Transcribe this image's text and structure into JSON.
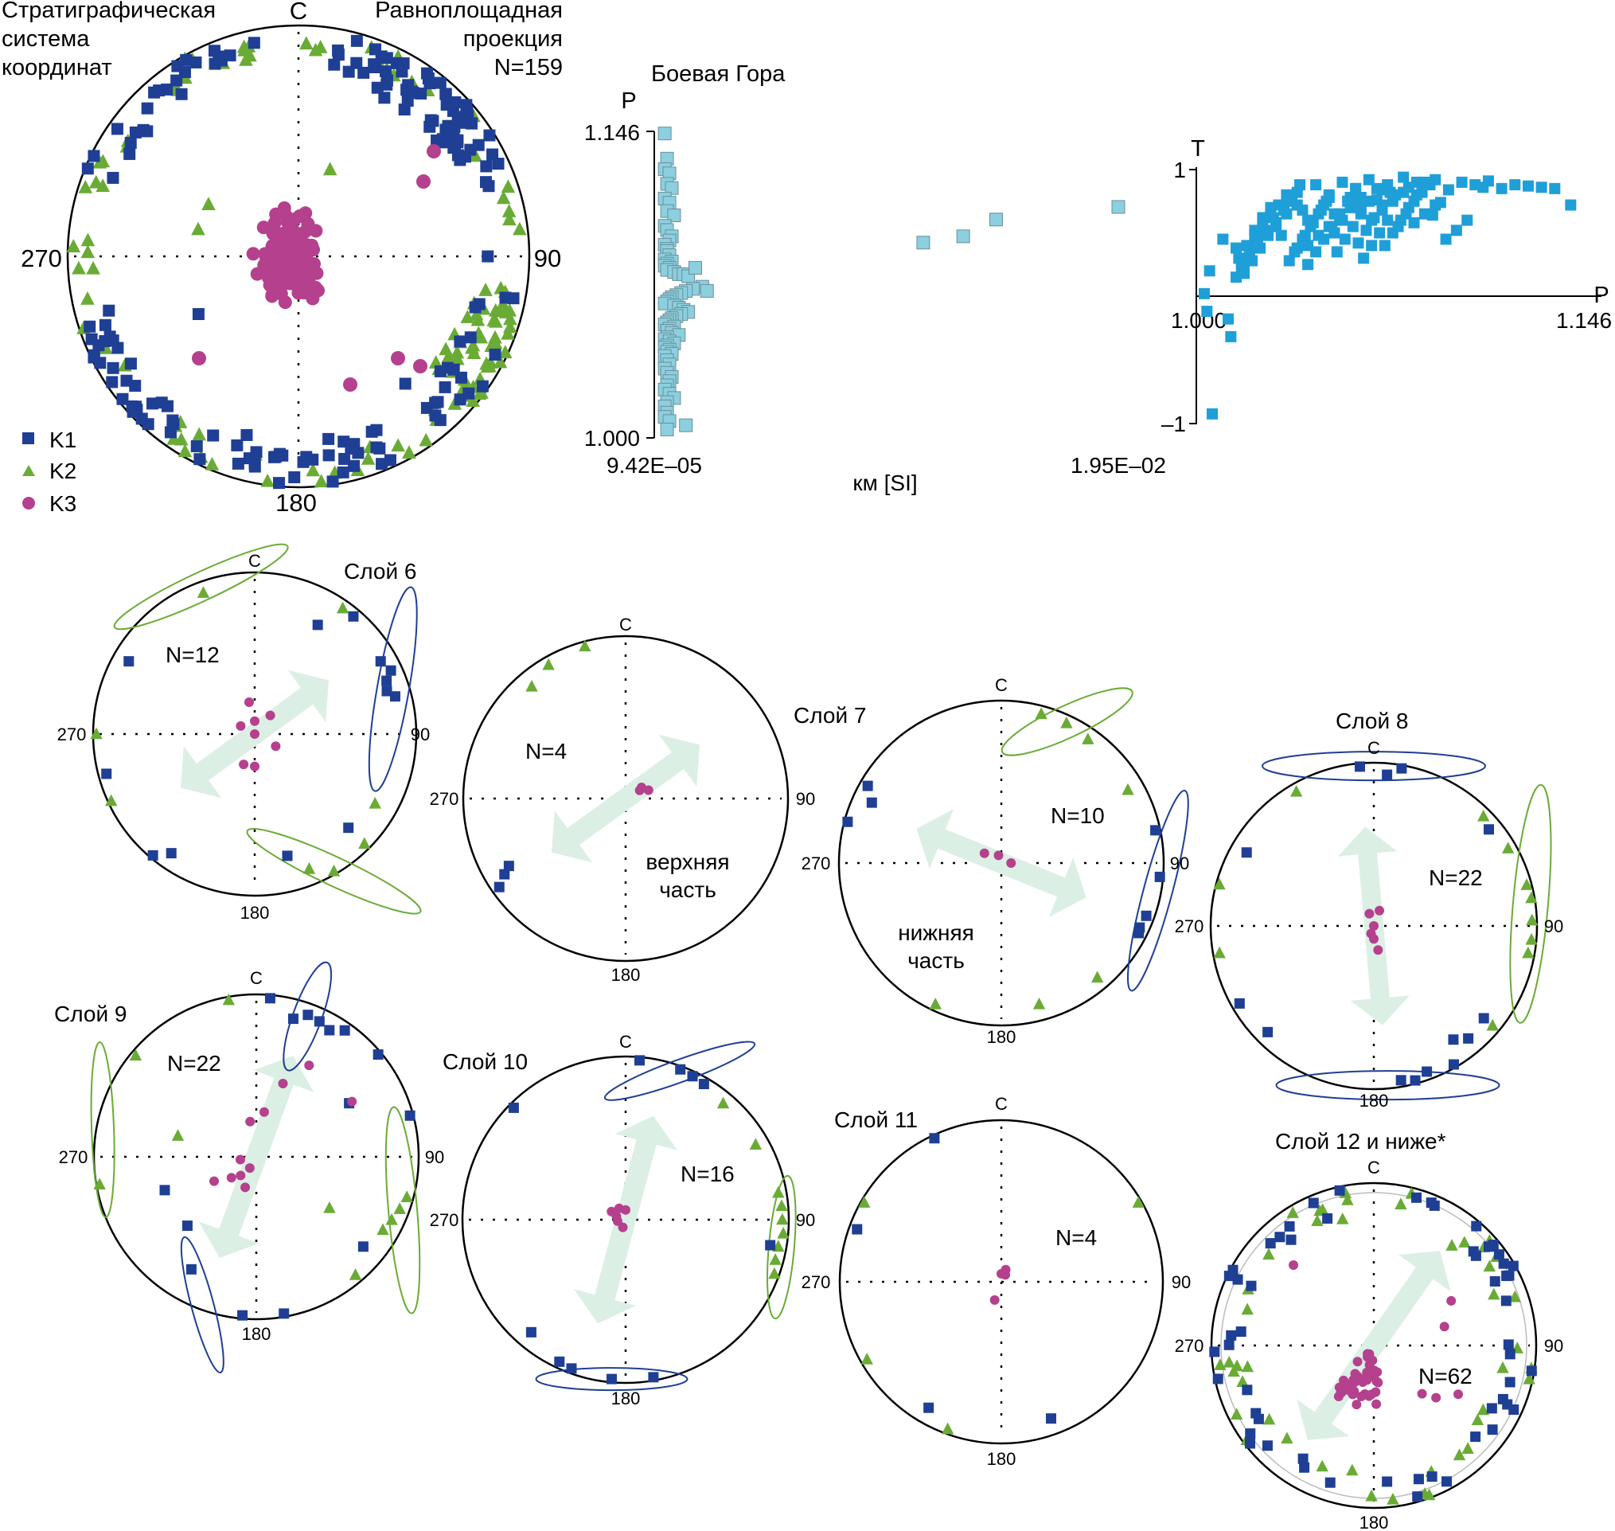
{
  "main_stereonet": {
    "title_left": [
      "Стратиграфическая",
      "система",
      "координат"
    ],
    "title_right": [
      "Равноплощадная",
      "проекция",
      "N=159"
    ],
    "north": "С",
    "east": "90",
    "south": "180",
    "west": "270"
  },
  "legend": [
    {
      "key": "K1",
      "label": "K1",
      "marker": "square",
      "color": "#1f3f94"
    },
    {
      "key": "K2",
      "label": "K2",
      "marker": "triangle",
      "color": "#6aab35"
    },
    {
      "key": "K3",
      "label": "K3",
      "marker": "circle",
      "color": "#b5408e"
    }
  ],
  "colors": {
    "K1": "#1f3f94",
    "K2": "#6aab35",
    "K3": "#b5408e",
    "pkm": "#8ccfdf",
    "tp": "#1f9fd8",
    "arrow": "#dcefe4"
  },
  "subplots": [
    {
      "title": "Слой 6",
      "n_label": "N=12",
      "north": "С",
      "east": "90",
      "south": "180",
      "west": "270",
      "extra": []
    },
    {
      "title": "",
      "n_label": "N=4",
      "north": "С",
      "east": "90",
      "south": "180",
      "west": "270",
      "extra": [
        "верхняя",
        "часть"
      ]
    },
    {
      "title": "Слой 7",
      "n_label": "N=10",
      "north": "С",
      "east": "90",
      "south": "180",
      "west": "270",
      "extra": [
        "нижняя",
        "часть"
      ]
    },
    {
      "title": "Слой 8",
      "n_label": "N=22",
      "north": "С",
      "east": "90",
      "south": "180",
      "west": "270",
      "extra": []
    },
    {
      "title": "Слой 9",
      "n_label": "N=22",
      "north": "С",
      "east": "90",
      "south": "180",
      "west": "270",
      "extra": []
    },
    {
      "title": "Слой 10",
      "n_label": "N=16",
      "north": "С",
      "east": "90",
      "south": "180",
      "west": "270",
      "extra": []
    },
    {
      "title": "Слой 11",
      "n_label": "N=4",
      "north": "С",
      "east": "90",
      "south": "180",
      "west": "270",
      "extra": []
    },
    {
      "title": "Слой 12 и ниже*",
      "n_label": "N=62",
      "north": "С",
      "east": "90",
      "south": "180",
      "west": "270",
      "extra": []
    }
  ],
  "chart_data": [
    {
      "type": "scatter",
      "title": "Боевая Гора",
      "ylabel": "P",
      "xlabel": "км [SI]",
      "xticks": [
        "9.42E–05",
        "1.95E–02"
      ],
      "yticks": [
        "1.146",
        "1.000"
      ],
      "xlim": [
        9.42e-05,
        0.0195
      ],
      "ylim": [
        1.0,
        1.146
      ],
      "series": [
        {
          "marker": "square",
          "x": [
            0.0002,
            0.0003,
            0.0002,
            0.0004,
            0.0003,
            0.0005,
            0.0002,
            0.0004,
            0.0003,
            0.0006,
            0.0002,
            0.0003,
            0.0005,
            0.0004,
            0.0002,
            0.0003,
            0.0003,
            0.0004,
            0.0002,
            0.0005,
            0.0003,
            0.0002,
            0.0004,
            0.0003,
            0.0006,
            0.0008,
            0.001,
            0.0012,
            0.0015,
            0.0018,
            0.002,
            0.0014,
            0.0011,
            0.0009,
            0.0007,
            0.0005,
            0.0004,
            0.0003,
            0.0002,
            0.0006,
            0.0008,
            0.001,
            0.0012,
            0.0009,
            0.0007,
            0.0005,
            0.0004,
            0.0003,
            0.0002,
            0.0006,
            0.0004,
            0.0003,
            0.0005,
            0.0008,
            0.0003,
            0.0002,
            0.0004,
            0.0006,
            0.0003,
            0.0002,
            0.0004,
            0.0003,
            0.0005,
            0.0002,
            0.0003,
            0.0004,
            0.0002,
            0.0003,
            0.0005,
            0.0004,
            0.0003,
            0.0002,
            0.0004,
            0.0006,
            0.0003,
            0.0002,
            0.0003,
            0.0002,
            0.0004,
            0.0003,
            0.0011,
            0.0112,
            0.0129,
            0.0143,
            0.0195
          ],
          "y": [
            1.145,
            1.133,
            1.128,
            1.126,
            1.121,
            1.119,
            1.114,
            1.112,
            1.108,
            1.106,
            1.101,
            1.099,
            1.096,
            1.094,
            1.092,
            1.09,
            1.089,
            1.087,
            1.085,
            1.084,
            1.083,
            1.082,
            1.081,
            1.08,
            1.079,
            1.078,
            1.078,
            1.077,
            1.081,
            1.072,
            1.07,
            1.071,
            1.07,
            1.069,
            1.068,
            1.067,
            1.066,
            1.065,
            1.064,
            1.063,
            1.062,
            1.061,
            1.06,
            1.059,
            1.058,
            1.057,
            1.056,
            1.055,
            1.054,
            1.053,
            1.052,
            1.051,
            1.05,
            1.049,
            1.048,
            1.047,
            1.046,
            1.045,
            1.044,
            1.043,
            1.042,
            1.041,
            1.04,
            1.039,
            1.037,
            1.035,
            1.033,
            1.031,
            1.029,
            1.027,
            1.025,
            1.023,
            1.021,
            1.019,
            1.017,
            1.015,
            1.012,
            1.01,
            1.008,
            1.004,
            1.006,
            1.093,
            1.096,
            1.104,
            1.11
          ]
        }
      ]
    },
    {
      "type": "scatter",
      "ylabel": "T",
      "xlabel": "P",
      "xticks": [
        "1.000",
        "1.146"
      ],
      "yticks": [
        "1",
        "–1"
      ],
      "xlim": [
        1.0,
        1.146
      ],
      "ylim": [
        -1,
        1
      ],
      "series": [
        {
          "marker": "square",
          "x": [
            1.003,
            1.004,
            1.006,
            1.012,
            1.013,
            1.005,
            1.01,
            1.015,
            1.02,
            1.022,
            1.025,
            1.028,
            1.03,
            1.032,
            1.035,
            1.038,
            1.04,
            1.042,
            1.045,
            1.048,
            1.05,
            1.052,
            1.055,
            1.058,
            1.06,
            1.062,
            1.065,
            1.068,
            1.07,
            1.072,
            1.075,
            1.078,
            1.08,
            1.083,
            1.085,
            1.088,
            1.09,
            1.095,
            1.1,
            1.105,
            1.108,
            1.11,
            1.115,
            1.12,
            1.125,
            1.13,
            1.135,
            1.141,
            1.015,
            1.018,
            1.02,
            1.023,
            1.026,
            1.03,
            1.034,
            1.038,
            1.042,
            1.046,
            1.05,
            1.054,
            1.058,
            1.062,
            1.066,
            1.07,
            1.074,
            1.078,
            1.082,
            1.086,
            1.09,
            1.094,
            1.098,
            1.102,
            1.016,
            1.019,
            1.022,
            1.025,
            1.028,
            1.031,
            1.034,
            1.037,
            1.04,
            1.043,
            1.046,
            1.049,
            1.052,
            1.055,
            1.058,
            1.061,
            1.064,
            1.067,
            1.07,
            1.073,
            1.076,
            1.079,
            1.082,
            1.085,
            1.017,
            1.02,
            1.023,
            1.026,
            1.029,
            1.032,
            1.035,
            1.038,
            1.041,
            1.044,
            1.047,
            1.05,
            1.053,
            1.056,
            1.059,
            1.062,
            1.065,
            1.068,
            1.071,
            1.074,
            1.077,
            1.08,
            1.083,
            1.086,
            1.089,
            1.092,
            1.018,
            1.021,
            1.024,
            1.027,
            1.03,
            1.033,
            1.036,
            1.039,
            1.042,
            1.045,
            1.048,
            1.051,
            1.054,
            1.057,
            1.06,
            1.063,
            1.066,
            1.069,
            1.072
          ],
          "y": [
            0.02,
            -0.12,
            -0.93,
            -0.18,
            -0.32,
            0.2,
            0.45,
            0.38,
            0.3,
            0.52,
            0.62,
            0.7,
            0.55,
            0.48,
            0.75,
            0.82,
            0.68,
            0.6,
            0.88,
            0.72,
            0.8,
            0.65,
            0.9,
            0.78,
            0.85,
            0.7,
            0.92,
            0.76,
            0.84,
            0.88,
            0.8,
            0.94,
            0.86,
            0.9,
            0.82,
            0.88,
            0.92,
            0.84,
            0.9,
            0.88,
            0.86,
            0.91,
            0.85,
            0.88,
            0.87,
            0.86,
            0.85,
            0.72,
            0.15,
            0.25,
            0.35,
            0.42,
            0.5,
            0.58,
            0.65,
            0.72,
            0.4,
            0.48,
            0.55,
            0.62,
            0.7,
            0.78,
            0.6,
            0.68,
            0.75,
            0.82,
            0.58,
            0.65,
            0.72,
            0.45,
            0.52,
            0.6,
            0.3,
            0.4,
            0.48,
            0.56,
            0.64,
            0.72,
            0.8,
            0.35,
            0.45,
            0.55,
            0.65,
            0.75,
            0.5,
            0.6,
            0.7,
            0.42,
            0.52,
            0.62,
            0.72,
            0.82,
            0.55,
            0.65,
            0.75,
            0.85,
            0.22,
            0.32,
            0.42,
            0.52,
            0.62,
            0.72,
            0.28,
            0.38,
            0.48,
            0.58,
            0.68,
            0.78,
            0.35,
            0.45,
            0.55,
            0.65,
            0.75,
            0.85,
            0.4,
            0.5,
            0.6,
            0.7,
            0.8,
            0.9,
            0.64,
            0.74,
            0.18,
            0.28,
            0.38,
            0.48,
            0.58,
            0.68,
            0.78,
            0.88,
            0.25,
            0.35,
            0.45,
            0.55,
            0.65,
            0.75,
            0.85,
            0.3,
            0.4,
            0.5,
            0.6
          ]
        }
      ]
    }
  ]
}
